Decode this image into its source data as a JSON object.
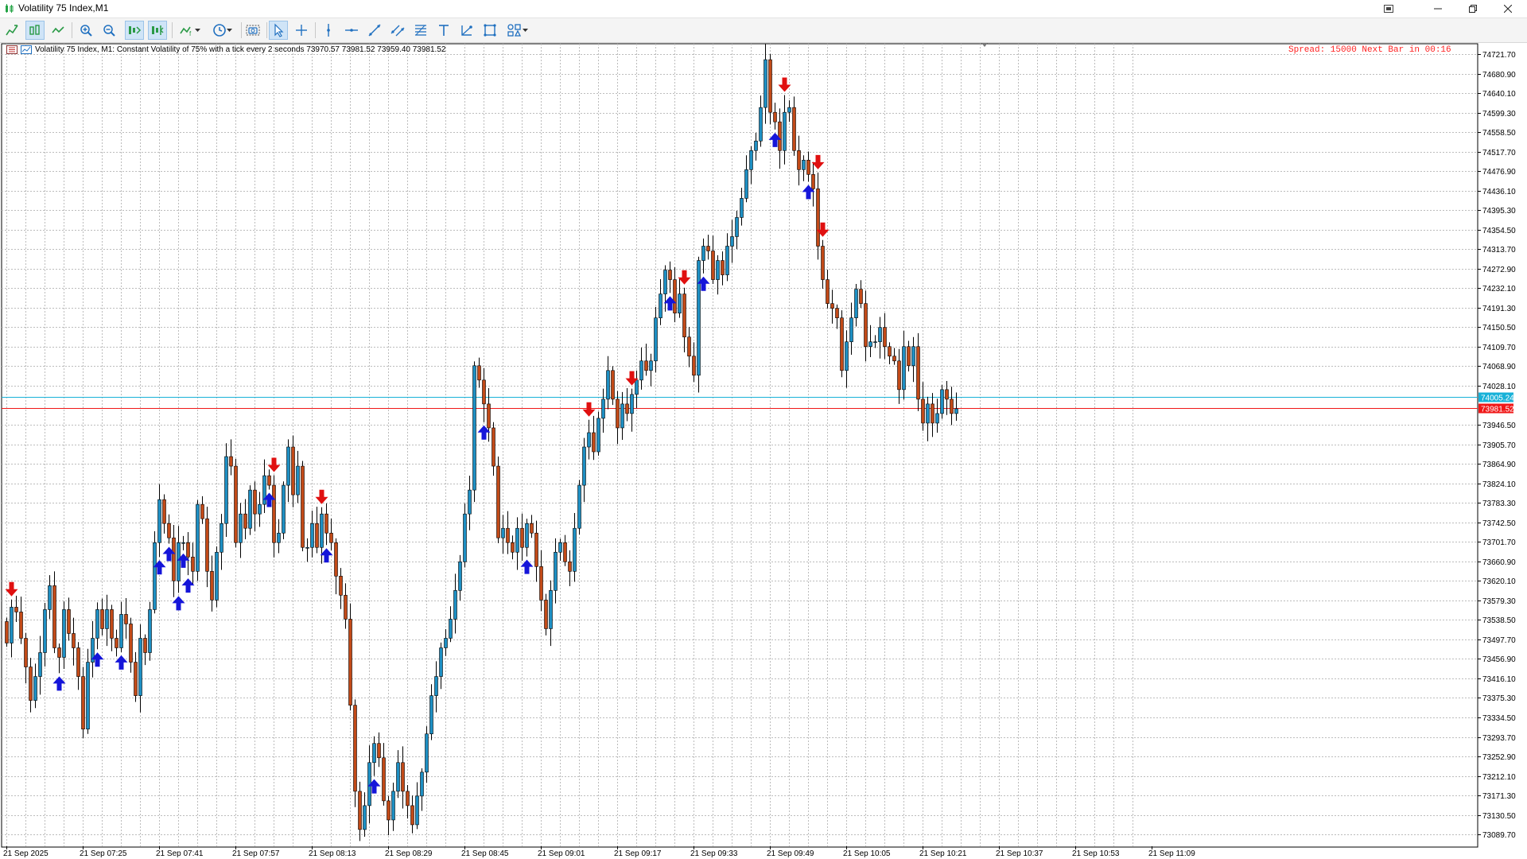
{
  "window": {
    "title": "Volatility 75 Index,M1",
    "controls": [
      "minimize",
      "restore",
      "close"
    ]
  },
  "toolbar": {
    "tools": [
      {
        "name": "new-order-icon",
        "active": false
      },
      {
        "name": "bar-chart-icon",
        "active": true
      },
      {
        "name": "line-chart-icon",
        "active": false
      },
      {
        "name": "zoom-in-icon",
        "active": false
      },
      {
        "name": "zoom-out-icon",
        "active": false
      },
      {
        "name": "autoscroll-icon",
        "active": true
      },
      {
        "name": "chart-shift-icon",
        "active": true
      },
      {
        "name": "indicators-icon",
        "active": false,
        "dropdown": true
      },
      {
        "name": "periods-icon",
        "active": false,
        "dropdown": true
      },
      {
        "name": "screenshot-icon",
        "active": false
      },
      {
        "name": "cursor-icon",
        "active": true
      },
      {
        "name": "crosshair-icon",
        "active": false
      },
      {
        "name": "vertical-line-icon",
        "active": false
      },
      {
        "name": "horizontal-line-icon",
        "active": false
      },
      {
        "name": "trendline-icon",
        "active": false
      },
      {
        "name": "equidistant-channel-icon",
        "active": false
      },
      {
        "name": "fibonacci-icon",
        "active": false
      },
      {
        "name": "text-icon",
        "active": false
      },
      {
        "name": "arrow-label-icon",
        "active": false
      },
      {
        "name": "rectangle-icon",
        "active": false
      },
      {
        "name": "shapes-icon",
        "active": false,
        "dropdown": true
      }
    ]
  },
  "chart_header": {
    "info": "Volatility 75 Index, M1:  Constant Volatility of 75% with a tick every 2 seconds  73970.57 73981.52 73959.40 73981.52",
    "spread_text": "Spread: 15000 Next Bar in 00:16"
  },
  "chart_data": {
    "type": "candlestick",
    "symbol": "Volatility 75 Index",
    "timeframe": "M1",
    "y_ticks": [
      "74721.70",
      "74680.90",
      "74640.10",
      "74599.30",
      "74558.50",
      "74517.70",
      "74476.90",
      "74436.10",
      "74395.30",
      "74354.50",
      "74313.70",
      "74272.90",
      "74232.10",
      "74191.30",
      "74150.50",
      "74109.70",
      "74068.90",
      "74028.10",
      "73946.50",
      "73905.70",
      "73864.90",
      "73824.10",
      "73783.30",
      "73742.50",
      "73701.70",
      "73660.90",
      "73620.10",
      "73579.30",
      "73538.50",
      "73497.70",
      "73456.90",
      "73416.10",
      "73375.30",
      "73334.50",
      "73293.70",
      "73252.90",
      "73212.10",
      "73171.30",
      "73130.50",
      "73089.70"
    ],
    "x_ticks": [
      "21 Sep 2025",
      "21 Sep 07:25",
      "21 Sep 07:41",
      "21 Sep 07:57",
      "21 Sep 08:13",
      "21 Sep 08:29",
      "21 Sep 08:45",
      "21 Sep 09:01",
      "21 Sep 09:17",
      "21 Sep 09:33",
      "21 Sep 09:49",
      "21 Sep 10:05",
      "21 Sep 10:21",
      "21 Sep 10:37",
      "21 Sep 10:53",
      "21 Sep 11:09"
    ],
    "ylim": [
      73065,
      74745
    ],
    "ask_line": {
      "label": "74005.24",
      "value": 74005.24,
      "color": "#17b1d8"
    },
    "bid_line": {
      "label": "73981.52",
      "value": 73981.52,
      "color": "#f01818"
    },
    "colors": {
      "bull": "#1e8fc3",
      "bear": "#c24a18",
      "grid": "#bcbcbc",
      "up_arrow": "#1515d9",
      "down_arrow": "#e01010"
    },
    "closes": [
      73490,
      73565,
      73555,
      73500,
      73440,
      73370,
      73420,
      73470,
      73560,
      73610,
      73480,
      73460,
      73560,
      73510,
      73480,
      73420,
      73310,
      73450,
      73500,
      73560,
      73520,
      73560,
      73500,
      73480,
      73550,
      73530,
      73450,
      73380,
      73500,
      73470,
      73560,
      73700,
      73790,
      73740,
      73710,
      73620,
      73700,
      73700,
      73670,
      73640,
      73780,
      73750,
      73640,
      73580,
      73680,
      73740,
      73880,
      73860,
      73700,
      73760,
      73730,
      73810,
      73760,
      73780,
      73840,
      73820,
      73700,
      73720,
      73820,
      73900,
      73800,
      73860,
      73690,
      73690,
      73740,
      73690,
      73760,
      73720,
      73700,
      73630,
      73590,
      73540,
      73360,
      73180,
      73100,
      73150,
      73240,
      73280,
      73250,
      73160,
      73120,
      73180,
      73240,
      73180,
      73150,
      73110,
      73170,
      73220,
      73300,
      73380,
      73420,
      73480,
      73500,
      73540,
      73600,
      73660,
      73760,
      73810,
      74070,
      74040,
      73990,
      73940,
      73860,
      73710,
      73730,
      73700,
      73680,
      73730,
      73690,
      73740,
      73720,
      73650,
      73580,
      73520,
      73600,
      73680,
      73700,
      73660,
      73640,
      73730,
      73820,
      73900,
      73930,
      73890,
      73960,
      74000,
      74060,
      74000,
      73940,
      73990,
      73970,
      74010,
      74040,
      74080,
      74060,
      74080,
      74170,
      74220,
      74270,
      74250,
      74180,
      74220,
      74130,
      74090,
      74050,
      74290,
      74320,
      74310,
      74250,
      74290,
      74260,
      74320,
      74340,
      74380,
      74420,
      74480,
      74520,
      74540,
      74610,
      74710,
      74600,
      74580,
      74520,
      74600,
      74610,
      74520,
      74480,
      74500,
      74470,
      74440,
      74320,
      74250,
      74200,
      74190,
      74170,
      74060,
      74120,
      74170,
      74230,
      74200,
      74110,
      74120,
      74120,
      74150,
      74110,
      74090,
      74080,
      74020,
      74110,
      74070,
      74110,
      74000,
      73950,
      73990,
      73950,
      73970,
      74020,
      74000,
      73970,
      73980
    ],
    "up_arrow_bars": [
      11,
      19,
      24,
      32,
      34,
      36,
      37,
      38,
      55,
      67,
      77,
      100,
      109,
      139,
      146,
      161,
      168
    ],
    "down_arrow_bars": [
      1,
      56,
      66,
      122,
      131,
      142,
      163,
      170,
      171
    ]
  }
}
